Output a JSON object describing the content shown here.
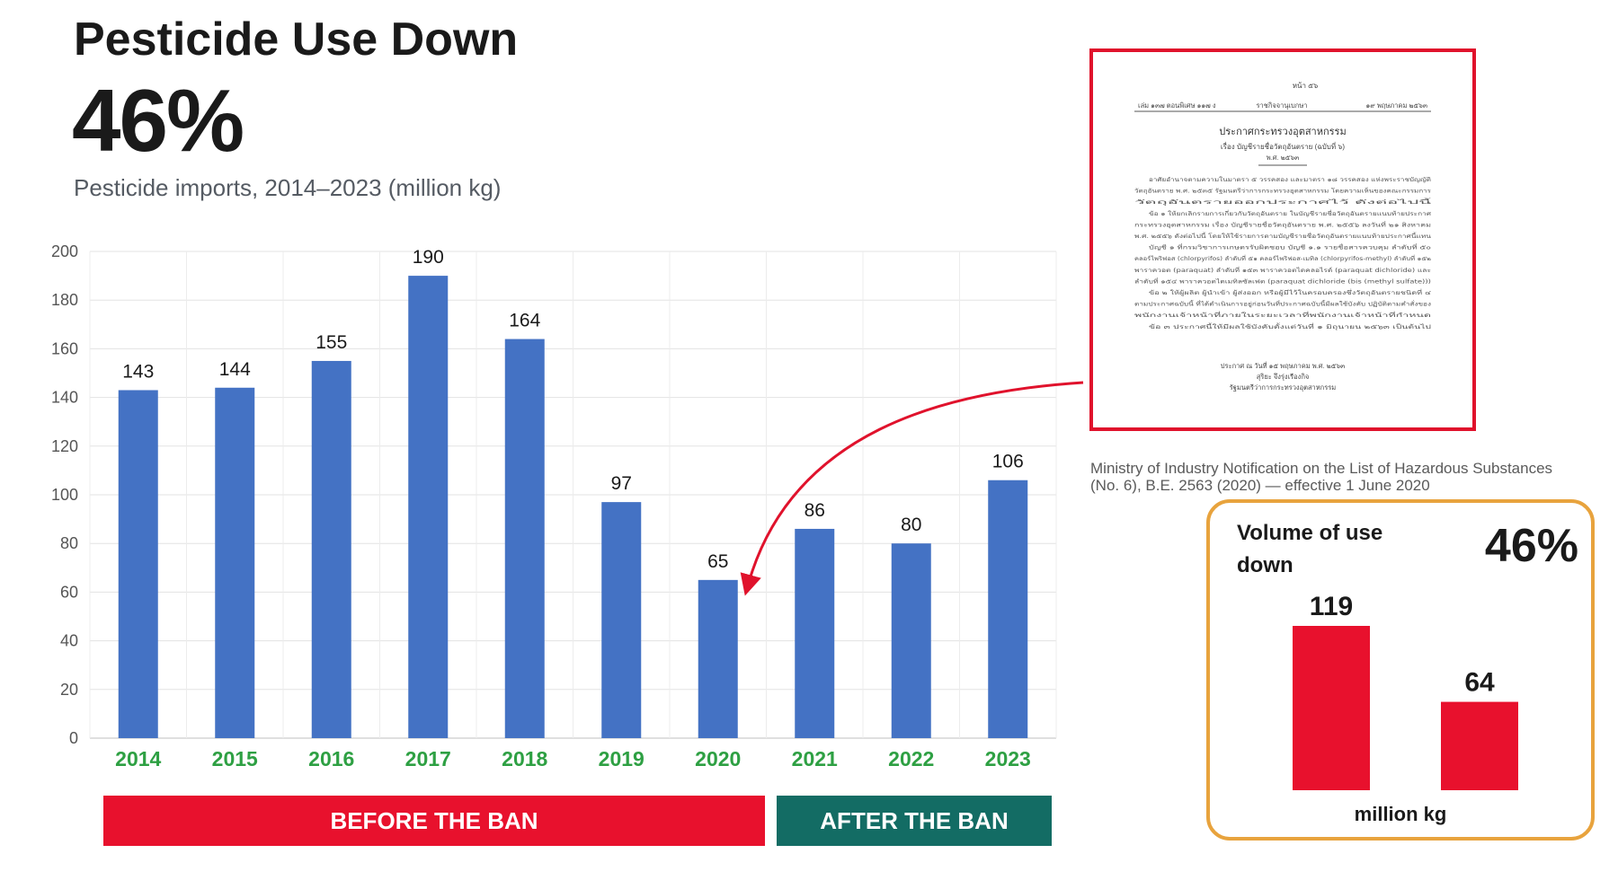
{
  "header": {
    "title": "Pesticide Use Down",
    "headline_value": "46%",
    "subtitle": "Pesticide imports, 2014–2023  (million kg)"
  },
  "chart_data": [
    {
      "type": "bar",
      "title": "Pesticide imports, 2014–2023  (million kg)",
      "categories": [
        "2014",
        "2015",
        "2016",
        "2017",
        "2018",
        "2019",
        "2020",
        "2021",
        "2022",
        "2023"
      ],
      "values": [
        143,
        144,
        155,
        190,
        164,
        97,
        65,
        86,
        80,
        106
      ],
      "ylim": [
        0,
        200
      ],
      "yticks": [
        0,
        20,
        40,
        60,
        80,
        100,
        120,
        140,
        160,
        180,
        200
      ],
      "grid": true,
      "colors": {
        "bar": "#4472c4",
        "xtick": "#2ea043"
      }
    },
    {
      "type": "bar",
      "title": "Volume of use down",
      "categories": [
        "",
        ""
      ],
      "values": [
        119,
        64
      ],
      "ylabel": "million kg",
      "colors": {
        "bar": "#e8112d"
      }
    }
  ],
  "periods": {
    "before": "BEFORE THE BAN",
    "after": "AFTER THE BAN"
  },
  "document": {
    "page_header": "หน้า ๕๖",
    "meta_left": "เล่ม ๑๓๗ ตอนพิเศษ ๑๑๗ ง",
    "meta_mid": "ราชกิจจานุเบกษา",
    "meta_right": "๑๙ พฤษภาคม ๒๕๖๓",
    "heading": "ประกาศกระทรวงอุตสาหกรรม",
    "subject": "เรื่อง บัญชีรายชื่อวัตถุอันตราย (ฉบับที่ ๖)",
    "year": "พ.ศ. ๒๕๖๓",
    "body": [
      "อาศัยอำนาจตามความในมาตรา ๕ วรรคสอง และมาตรา ๑๘ วรรคสอง แห่งพระราชบัญญัติ",
      "วัตถุอันตราย พ.ศ. ๒๕๓๕ รัฐมนตรีว่าการกระทรวงอุตสาหกรรม โดยความเห็นของคณะกรรมการ",
      "วัตถุอันตรายออกประกาศไว้ ดังต่อไปนี้",
      "ข้อ ๑ ให้ยกเลิกรายการเกี่ยวกับวัตถุอันตราย ในบัญชีรายชื่อวัตถุอันตรายแนบท้ายประกาศ",
      "กระทรวงอุตสาหกรรม เรื่อง บัญชีรายชื่อวัตถุอันตราย พ.ศ. ๒๕๕๖ ลงวันที่ ๒๑ สิงหาคม",
      "พ.ศ. ๒๕๕๖ ดังต่อไปนี้ โดยให้ใช้รายการตามบัญชีรายชื่อวัตถุอันตรายแนบท้ายประกาศนี้แทน",
      "บัญชี ๑ ที่กรมวิชาการเกษตรรับผิดชอบ บัญชี ๑.๑ รายชื่อสารควบคุม ลำดับที่ ๕๐",
      "คลอร์ไพริฟอส (chlorpyrifos) ลำดับที่ ๕๑ คลอร์ไพริฟอส-เมทิล (chlorpyrifos-methyl) ลำดับที่ ๑๕๒",
      "พาราควอต (paraquat) ลำดับที่ ๑๕๓ พาราควอตไดคลอไรด์ (paraquat dichloride) และ",
      "ลำดับที่ ๑๕๔ พาราควอตไดเมทิลซัลเฟต (paraquat dichloride (bis (methyl sulfate)))",
      "ข้อ ๒ ให้ผู้ผลิต ผู้นำเข้า ผู้ส่งออก หรือผู้มีไว้ในครอบครองซึ่งวัตถุอันตรายชนิดที่ ๔",
      "ตามประกาศฉบับนี้ ที่ได้ดำเนินการอยู่ก่อนวันที่ประกาศฉบับนี้มีผลใช้บังคับ ปฏิบัติตามคำสั่งของ",
      "พนักงานเจ้าหน้าที่ภายในระยะเวลาที่พนักงานเจ้าหน้าที่กำหนด",
      "ข้อ ๓ ประกาศนี้ให้มีผลใช้บังคับตั้งแต่วันที่ ๑ มิถุนายน ๒๕๖๓ เป็นต้นไป"
    ],
    "sign_date": "ประกาศ ณ วันที่ ๑๕ พฤษภาคม พ.ศ. ๒๕๖๓",
    "sign_name": "สุริยะ จึงรุ่งเรืองกิจ",
    "sign_title": "รัฐมนตรีว่าการกระทรวงอุตสาหกรรม",
    "caption": "Ministry of Industry Notification on the List of Hazardous Substances (No. 6), B.E. 2563 (2020) — effective 1 June 2020"
  },
  "panel": {
    "label": "Volume of use down",
    "pct": "46%",
    "unit": "million kg"
  },
  "colors": {
    "red": "#e8112d",
    "teal": "#136c64",
    "blue": "#4472c4",
    "green": "#2ea043",
    "orange": "#e8a33d"
  }
}
